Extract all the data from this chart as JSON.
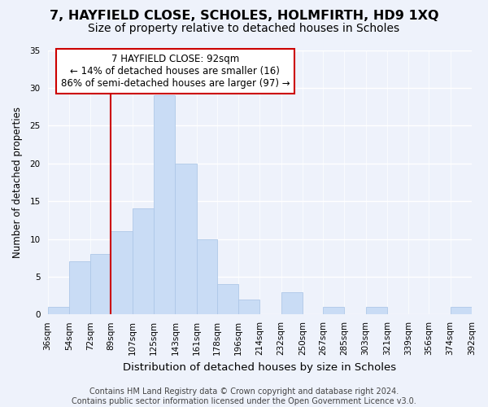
{
  "title": "7, HAYFIELD CLOSE, SCHOLES, HOLMFIRTH, HD9 1XQ",
  "subtitle": "Size of property relative to detached houses in Scholes",
  "xlabel": "Distribution of detached houses by size in Scholes",
  "ylabel": "Number of detached properties",
  "bin_edges": [
    36,
    54,
    72,
    89,
    107,
    125,
    143,
    161,
    178,
    196,
    214,
    232,
    250,
    267,
    285,
    303,
    321,
    339,
    356,
    374,
    392
  ],
  "bin_labels": [
    "36sqm",
    "54sqm",
    "72sqm",
    "89sqm",
    "107sqm",
    "125sqm",
    "143sqm",
    "161sqm",
    "178sqm",
    "196sqm",
    "214sqm",
    "232sqm",
    "250sqm",
    "267sqm",
    "285sqm",
    "303sqm",
    "321sqm",
    "339sqm",
    "356sqm",
    "374sqm",
    "392sqm"
  ],
  "counts": [
    1,
    7,
    8,
    11,
    14,
    29,
    20,
    10,
    4,
    2,
    0,
    3,
    0,
    1,
    0,
    1,
    0,
    0,
    0,
    1
  ],
  "bar_color": "#c9dcf5",
  "vline_x": 89,
  "vline_color": "#cc0000",
  "annotation_line1": "7 HAYFIELD CLOSE: 92sqm",
  "annotation_line2": "← 14% of detached houses are smaller (16)",
  "annotation_line3": "86% of semi-detached houses are larger (97) →",
  "annotation_box_color": "#ffffff",
  "annotation_box_edge": "#cc0000",
  "ylim": [
    0,
    35
  ],
  "yticks": [
    0,
    5,
    10,
    15,
    20,
    25,
    30,
    35
  ],
  "background_color": "#eef2fb",
  "grid_color": "#ffffff",
  "footer_text": "Contains HM Land Registry data © Crown copyright and database right 2024.\nContains public sector information licensed under the Open Government Licence v3.0.",
  "title_fontsize": 11.5,
  "subtitle_fontsize": 10,
  "xlabel_fontsize": 9.5,
  "ylabel_fontsize": 8.5,
  "tick_fontsize": 7.5,
  "annotation_fontsize": 8.5,
  "footer_fontsize": 7
}
